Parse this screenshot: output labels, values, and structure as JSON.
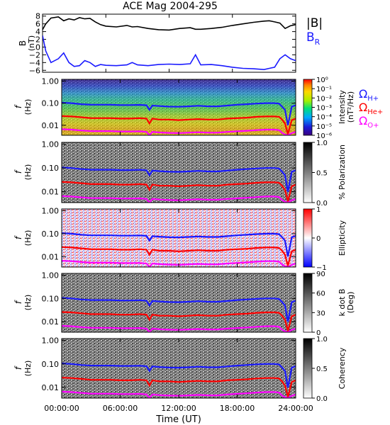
{
  "title": "ACE Mag 2004-295",
  "chart_data": {
    "type": "line",
    "title": "ACE Mag 2004-295",
    "x_ticks": [
      "00:00:00",
      "06:00:00",
      "12:00:00",
      "18:00:00",
      "24:00:00"
    ],
    "x_tick_hours": [
      0,
      6,
      12,
      18,
      24
    ],
    "xlabel": "Time (UT)",
    "xlim": [
      0,
      24
    ],
    "field_panel": {
      "ylabel": "B",
      "yunit": "(nT)",
      "ylim": [
        -6.5,
        8.5
      ],
      "yticks": [
        "8",
        "6",
        "4",
        "2",
        "0",
        "−2",
        "−4",
        "−6"
      ],
      "ytick_values": [
        8,
        6,
        4,
        2,
        0,
        -2,
        -4,
        -6
      ],
      "legend": [
        {
          "label": "|B|",
          "color": "#000000"
        },
        {
          "label": "B",
          "sub": "R",
          "color": "#1a1aff"
        }
      ],
      "series": [
        {
          "name": "|B|",
          "color": "#000000",
          "x": [
            0,
            0.3,
            0.8,
            1.5,
            2.0,
            2.5,
            3.0,
            3.5,
            4.0,
            4.5,
            5.0,
            5.5,
            6.0,
            7.0,
            8.0,
            8.5,
            9.0,
            10.0,
            11.0,
            12.0,
            13.0,
            14.0,
            14.5,
            15.0,
            16.0,
            17.0,
            18.0,
            19.0,
            20.0,
            21.0,
            21.5,
            22.0,
            22.5,
            23.0,
            23.5,
            24.0
          ],
          "y": [
            4.5,
            6.0,
            7.5,
            7.8,
            6.8,
            7.3,
            7.0,
            7.6,
            7.3,
            7.4,
            6.5,
            5.8,
            5.4,
            5.2,
            5.6,
            5.2,
            5.3,
            4.8,
            4.5,
            4.4,
            4.8,
            5.0,
            4.6,
            4.6,
            4.8,
            5.1,
            5.6,
            6.0,
            6.4,
            6.7,
            6.8,
            6.5,
            6.2,
            4.8,
            5.5,
            5.8
          ]
        },
        {
          "name": "B_R",
          "color": "#1a1aff",
          "x": [
            0,
            0.3,
            0.8,
            1.5,
            2.0,
            2.5,
            3.0,
            3.5,
            4.0,
            4.5,
            5.0,
            5.5,
            6.0,
            7.0,
            8.0,
            8.5,
            9.0,
            10.0,
            11.0,
            12.0,
            13.0,
            14.0,
            14.5,
            15.0,
            16.0,
            17.0,
            18.0,
            19.0,
            20.0,
            21.0,
            21.5,
            22.0,
            22.5,
            23.0,
            23.5,
            24.0
          ],
          "y": [
            3.0,
            -1.0,
            -4.0,
            -3.0,
            -1.5,
            -4.0,
            -5.0,
            -4.8,
            -3.5,
            -4.0,
            -5.0,
            -4.5,
            -4.7,
            -4.8,
            -4.6,
            -4.0,
            -4.6,
            -4.8,
            -4.5,
            -4.4,
            -4.5,
            -4.3,
            -2.0,
            -4.6,
            -4.5,
            -4.8,
            -5.2,
            -5.5,
            -5.6,
            -5.8,
            -5.5,
            -5.2,
            -3.0,
            -2.0,
            -3.0,
            -3.5
          ]
        }
      ]
    },
    "spectrogram_panels": [
      {
        "name": "Power",
        "colorbar_label": "Intensity",
        "colorbar_unit": "(nT²/Hz)",
        "colorbar_ticks": [
          "10⁰",
          "10⁻¹",
          "10⁻²",
          "10⁻³",
          "10⁻⁴",
          "10⁻⁵",
          "10⁻⁶"
        ],
        "colormap": "rainbow",
        "legend": [
          {
            "symbol": "Ω",
            "sub": "H+",
            "color": "#1a1aff"
          },
          {
            "symbol": "Ω",
            "sub": "He+",
            "color": "#ff0000"
          },
          {
            "symbol": "Ω",
            "sub": "O+",
            "color": "#ff00ff"
          }
        ]
      },
      {
        "name": "Polarization",
        "colorbar_label": "% Polarization",
        "colorbar_unit": "",
        "colorbar_ticks": [
          "1.0",
          "0.5",
          "0.0"
        ],
        "colormap": "gray"
      },
      {
        "name": "Ellipticity",
        "colorbar_label": "Ellipticity",
        "colorbar_unit": "",
        "colorbar_ticks": [
          "1",
          "0",
          "−1"
        ],
        "colormap": "bluewhitered"
      },
      {
        "name": "Wave normal angle",
        "colorbar_label": "k dot B",
        "colorbar_unit": "(Deg)",
        "colorbar_ticks": [
          "90",
          "60",
          "30",
          "0"
        ],
        "colormap": "gray"
      },
      {
        "name": "Coherency",
        "colorbar_label": "Coherency",
        "colorbar_unit": "",
        "colorbar_ticks": [
          "1.0",
          "0.5",
          "0.0"
        ],
        "colormap": "gray"
      }
    ],
    "frequency_axis": {
      "ylabel": "f",
      "yunit": "(Hz)",
      "scale": "log",
      "ylim": [
        0.0035,
        1.2
      ],
      "yticks": [
        "1.00",
        "0.10",
        "0.01"
      ],
      "ytick_values": [
        1.0,
        0.1,
        0.01
      ]
    },
    "gyrofrequency_lines": [
      {
        "name": "Ω_H+",
        "color": "#1a1aff",
        "x": [
          0,
          1,
          2,
          3,
          4,
          5,
          6,
          7,
          8,
          8.7,
          9.0,
          9.3,
          10,
          11,
          12,
          13,
          14,
          15,
          16,
          17,
          18,
          19,
          20,
          21,
          21.8,
          22.3,
          22.6,
          22.9,
          23.2,
          23.6,
          24.0
        ],
        "y": [
          0.105,
          0.1,
          0.09,
          0.085,
          0.085,
          0.085,
          0.082,
          0.082,
          0.084,
          0.08,
          0.05,
          0.078,
          0.074,
          0.07,
          0.069,
          0.072,
          0.076,
          0.072,
          0.072,
          0.078,
          0.085,
          0.09,
          0.096,
          0.1,
          0.1,
          0.095,
          0.07,
          0.05,
          0.01,
          0.07,
          0.08
        ]
      },
      {
        "name": "Ω_He+",
        "color": "#ff0000",
        "x": [
          0,
          1,
          2,
          3,
          4,
          5,
          6,
          7,
          8,
          8.7,
          9.0,
          9.3,
          10,
          11,
          12,
          13,
          14,
          15,
          16,
          17,
          18,
          19,
          20,
          21,
          21.8,
          22.3,
          22.6,
          22.9,
          23.2,
          23.6,
          24.0
        ],
        "y": [
          0.026,
          0.025,
          0.023,
          0.021,
          0.021,
          0.021,
          0.02,
          0.02,
          0.021,
          0.02,
          0.012,
          0.02,
          0.018,
          0.018,
          0.017,
          0.018,
          0.019,
          0.018,
          0.018,
          0.02,
          0.021,
          0.022,
          0.024,
          0.025,
          0.025,
          0.024,
          0.018,
          0.012,
          0.004,
          0.017,
          0.02
        ]
      },
      {
        "name": "Ω_O+",
        "color": "#ff00ff",
        "x": [
          0,
          1,
          2,
          3,
          4,
          5,
          6,
          7,
          8,
          8.7,
          9.0,
          9.3,
          10,
          11,
          12,
          13,
          14,
          15,
          16,
          17,
          18,
          19,
          20,
          21,
          21.8,
          22.3,
          22.6,
          22.9,
          23.2,
          23.6,
          24.0
        ],
        "y": [
          0.0066,
          0.0063,
          0.0058,
          0.0054,
          0.0054,
          0.0054,
          0.0052,
          0.0052,
          0.0053,
          0.005,
          0.0035,
          0.005,
          0.0047,
          0.0045,
          0.0044,
          0.0046,
          0.0048,
          0.0046,
          0.0046,
          0.005,
          0.0053,
          0.0056,
          0.006,
          0.0063,
          0.0063,
          0.006,
          0.0045,
          0.0038,
          0.0035,
          0.0044,
          0.005
        ]
      }
    ]
  }
}
